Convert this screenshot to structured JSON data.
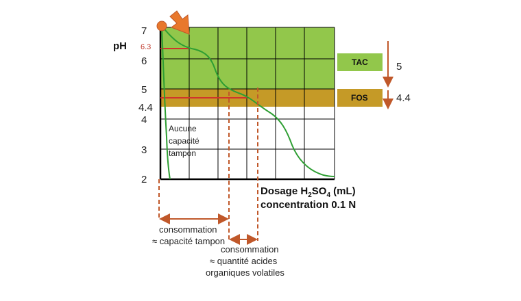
{
  "y_axis": {
    "label": "pH",
    "ticks": [
      "7",
      "6",
      "5",
      "4",
      "3",
      "2"
    ],
    "marker_63": "6.3",
    "marker_44": "4.4"
  },
  "colors": {
    "tac_band": "#92c74b",
    "fos_band": "#c59a27",
    "curve": "#2e9e33",
    "marker_line": "#d0342c",
    "arrow": "#c0582a",
    "grid": "#000000"
  },
  "annotations": {
    "buffer_note": [
      "Aucune",
      "capacité",
      "tampon"
    ]
  },
  "legend": {
    "tac_label": "TAC",
    "tac_value": "5",
    "fos_label": "FOS",
    "fos_value": "4.4"
  },
  "x_axis": {
    "label_prefix": "Dosage H",
    "label_sub1": "2",
    "label_mid": "SO",
    "label_sub2": "4",
    "label_suffix": " (mL)",
    "line2": "concentration 0.1 N"
  },
  "consumption": {
    "first": [
      "consommation",
      "≈ capacité tampon"
    ],
    "second": [
      "consommation",
      "≈ quantité acides",
      "organiques volatiles"
    ]
  },
  "icons": {
    "start_point": "orange-dot-icon",
    "pointer": "orange-arrow-icon"
  },
  "chart_data": {
    "type": "line",
    "ylabel": "pH",
    "xlabel": "Dosage H2SO4 (mL) concentration 0.1 N",
    "ylim": [
      2,
      7
    ],
    "bands": [
      {
        "name": "TAC",
        "from": 5,
        "to": 7
      },
      {
        "name": "FOS",
        "from": 4.4,
        "to": 5
      }
    ],
    "series": [
      {
        "y": [
          7,
          6.3,
          5.6,
          4.8,
          4.4,
          3.6,
          2.9,
          2.15,
          2.05
        ]
      },
      {
        "y": [
          7,
          5.5,
          4,
          3,
          2
        ]
      }
    ],
    "reference_levels": [
      6.3,
      4.4
    ]
  }
}
